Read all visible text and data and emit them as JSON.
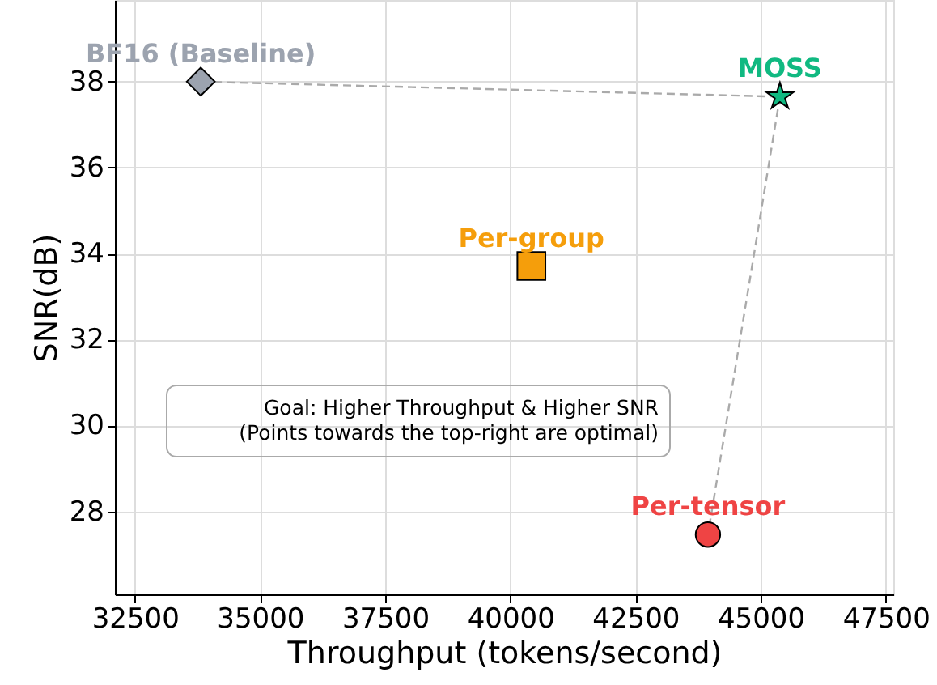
{
  "chart_data": {
    "type": "scatter",
    "xlabel": "Throughput (tokens/second)",
    "ylabel": "SNR(dB)",
    "xlim": [
      32100,
      47650
    ],
    "ylim": [
      26.07,
      39.9
    ],
    "xticks": [
      32500,
      35000,
      37500,
      40000,
      42500,
      45000,
      47500
    ],
    "yticks": [
      28,
      30,
      32,
      34,
      36,
      38
    ],
    "grid": true,
    "annotations": [
      "Goal: Higher Throughput & Higher SNR\n(Points towards the top-right are optimal)"
    ],
    "series": [
      {
        "name": "BF16 (Baseline)",
        "color": "#9ca3af",
        "marker": "diamond",
        "x": [
          33815
        ],
        "values": [
          38.0
        ]
      },
      {
        "name": "MOSS",
        "color": "#10b981",
        "marker": "star",
        "x": [
          45385
        ],
        "values": [
          37.65
        ]
      },
      {
        "name": "Per-group",
        "color": "#f59e0b",
        "marker": "square",
        "x": [
          40420
        ],
        "values": [
          33.71
        ]
      },
      {
        "name": "Per-tensor",
        "color": "#ef4444",
        "marker": "circle",
        "x": [
          43947
        ],
        "values": [
          27.46
        ]
      }
    ]
  }
}
